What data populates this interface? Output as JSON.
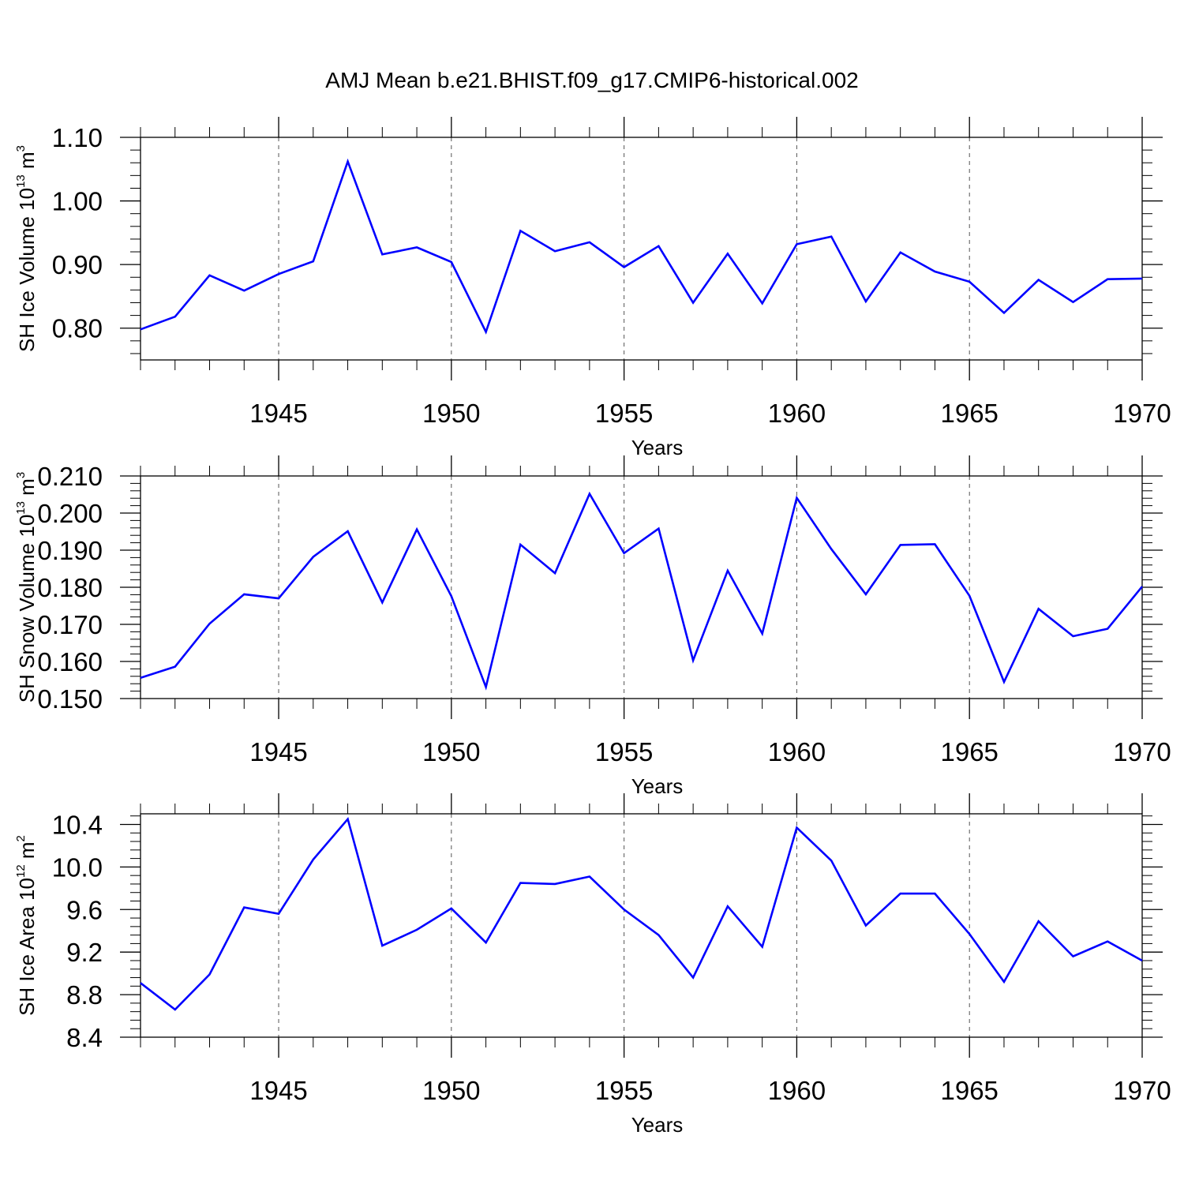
{
  "figure": {
    "title": "AMJ Mean b.e21.BHIST.f09_g17.CMIP6-historical.002",
    "line_color": "#0000ff",
    "grid_color": "#555555"
  },
  "chart_data": [
    {
      "type": "line",
      "ylabel": {
        "base": "SH Ice Volume 10",
        "exp1": "13",
        "mid": " m",
        "exp2": "3"
      },
      "xlabel": "Years",
      "xlim": [
        1941,
        1970
      ],
      "ylim": [
        0.75,
        1.1
      ],
      "xticks": [
        1945,
        1950,
        1955,
        1960,
        1965,
        1970
      ],
      "xtick_labels": [
        "1945",
        "1950",
        "1955",
        "1960",
        "1965",
        "1970"
      ],
      "yticks": [
        0.8,
        0.9,
        1.0,
        1.1
      ],
      "ytick_labels": [
        "0.80",
        "0.90",
        "1.00",
        "1.10"
      ],
      "x": [
        1941,
        1942,
        1943,
        1944,
        1945,
        1946,
        1947,
        1948,
        1949,
        1950,
        1951,
        1952,
        1953,
        1954,
        1955,
        1956,
        1957,
        1958,
        1959,
        1960,
        1961,
        1962,
        1963,
        1964,
        1965,
        1966,
        1967,
        1968,
        1969,
        1970
      ],
      "values": [
        0.798,
        0.818,
        0.883,
        0.859,
        0.885,
        0.905,
        1.062,
        0.916,
        0.927,
        0.904,
        0.794,
        0.953,
        0.921,
        0.935,
        0.896,
        0.929,
        0.84,
        0.917,
        0.839,
        0.932,
        0.944,
        0.842,
        0.919,
        0.889,
        0.873,
        0.824,
        0.876,
        0.841,
        0.877,
        0.878
      ]
    },
    {
      "type": "line",
      "ylabel": {
        "base": "SH Snow Volume 10",
        "exp1": "13",
        "mid": " m",
        "exp2": "3"
      },
      "xlabel": "Years",
      "xlim": [
        1941,
        1970
      ],
      "ylim": [
        0.15,
        0.21
      ],
      "xticks": [
        1945,
        1950,
        1955,
        1960,
        1965,
        1970
      ],
      "xtick_labels": [
        "1945",
        "1950",
        "1955",
        "1960",
        "1965",
        "1970"
      ],
      "yticks": [
        0.15,
        0.16,
        0.17,
        0.18,
        0.19,
        0.2,
        0.21
      ],
      "ytick_labels": [
        "0.150",
        "0.160",
        "0.170",
        "0.180",
        "0.190",
        "0.200",
        "0.210"
      ],
      "x": [
        1941,
        1942,
        1943,
        1944,
        1945,
        1946,
        1947,
        1948,
        1949,
        1950,
        1951,
        1952,
        1953,
        1954,
        1955,
        1956,
        1957,
        1958,
        1959,
        1960,
        1961,
        1962,
        1963,
        1964,
        1965,
        1966,
        1967,
        1968,
        1969,
        1970
      ],
      "values": [
        0.1556,
        0.1586,
        0.1702,
        0.1781,
        0.177,
        0.1882,
        0.1951,
        0.1759,
        0.1956,
        0.1776,
        0.1531,
        0.1915,
        0.1838,
        0.2052,
        0.1892,
        0.1958,
        0.1603,
        0.1845,
        0.1675,
        0.2041,
        0.1903,
        0.1781,
        0.1914,
        0.1916,
        0.1777,
        0.1545,
        0.1742,
        0.1668,
        0.1688,
        0.1802
      ]
    },
    {
      "type": "line",
      "ylabel": {
        "base": "SH Ice Area 10",
        "exp1": "12",
        "mid": " m",
        "exp2": "2"
      },
      "xlabel": "Years",
      "xlim": [
        1941,
        1970
      ],
      "ylim": [
        8.4,
        10.5
      ],
      "xticks": [
        1945,
        1950,
        1955,
        1960,
        1965,
        1970
      ],
      "xtick_labels": [
        "1945",
        "1950",
        "1955",
        "1960",
        "1965",
        "1970"
      ],
      "yticks": [
        8.4,
        8.8,
        9.2,
        9.6,
        10.0,
        10.4
      ],
      "ytick_labels": [
        "8.4",
        "8.8",
        "9.2",
        "9.6",
        "10.0",
        "10.4"
      ],
      "x": [
        1941,
        1942,
        1943,
        1944,
        1945,
        1946,
        1947,
        1948,
        1949,
        1950,
        1951,
        1952,
        1953,
        1954,
        1955,
        1956,
        1957,
        1958,
        1959,
        1960,
        1961,
        1962,
        1963,
        1964,
        1965,
        1966,
        1967,
        1968,
        1969,
        1970
      ],
      "values": [
        8.91,
        8.66,
        8.99,
        9.62,
        9.56,
        10.07,
        10.45,
        9.26,
        9.41,
        9.61,
        9.29,
        9.85,
        9.84,
        9.91,
        9.6,
        9.36,
        8.96,
        9.63,
        9.25,
        10.37,
        10.06,
        9.45,
        9.75,
        9.75,
        9.37,
        8.92,
        9.49,
        9.16,
        9.3,
        9.12
      ]
    }
  ]
}
